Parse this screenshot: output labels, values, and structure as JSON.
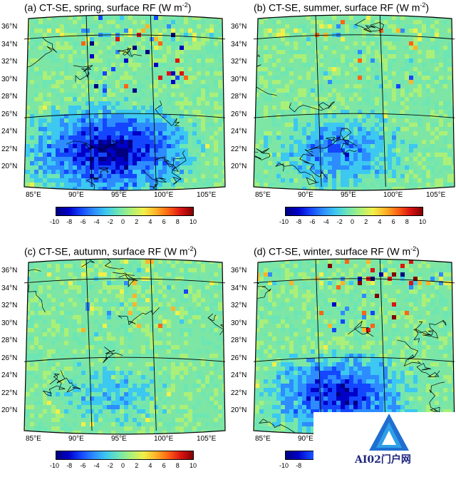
{
  "chart_data": [
    {
      "type": "heatmap",
      "title": "(a) CT-SE, spring, surface RF (W m",
      "title_sup": "-2",
      "title_end": ")",
      "y_ticks": [
        "36°N",
        "34°N",
        "32°N",
        "30°N",
        "28°N",
        "26°N",
        "24°N",
        "22°N",
        "20°N"
      ],
      "x_ticks": [
        "85°E",
        "90°E",
        "95°E",
        "100°E",
        "105°E"
      ],
      "colorbar_ticks": [
        "-10",
        "-8",
        "-6",
        "-4",
        "-2",
        "0",
        "2",
        "4",
        "6",
        "8",
        "10"
      ],
      "colorbar_range": [
        -10,
        10
      ],
      "pattern": "strong negative over south (Myanmar region, 20–26°N), scattered positive/negative dipoles over plateau"
    },
    {
      "type": "heatmap",
      "title": "(b) CT-SE, summer, surface RF (W m",
      "title_sup": "-2",
      "title_end": ")",
      "y_ticks": [
        "36°N",
        "34°N",
        "32°N",
        "30°N",
        "28°N",
        "26°N",
        "24°N",
        "22°N",
        "20°N"
      ],
      "x_ticks": [
        "85°E",
        "90°E",
        "95°E",
        "100°E",
        "105°E"
      ],
      "colorbar_ticks": [
        "-10",
        "-8",
        "-6",
        "-4",
        "-2",
        "0",
        "2",
        "4",
        "6",
        "8",
        "10"
      ],
      "colorbar_range": [
        -10,
        10
      ],
      "pattern": "moderate negative over south, weak elsewhere"
    },
    {
      "type": "heatmap",
      "title": "(c) CT-SE, autumn, surface RF (W m",
      "title_sup": "-2",
      "title_end": ")",
      "y_ticks": [
        "36°N",
        "34°N",
        "32°N",
        "30°N",
        "28°N",
        "26°N",
        "24°N",
        "22°N",
        "20°N"
      ],
      "x_ticks": [
        "85°E",
        "90°E",
        "95°E",
        "100°E",
        "105°E"
      ],
      "colorbar_ticks": [
        "-10",
        "-8",
        "-6",
        "-4",
        "-2",
        "0",
        "2",
        "4",
        "6",
        "8",
        "10"
      ],
      "colorbar_range": [
        -10,
        10
      ],
      "pattern": "weak negative over south-west, mostly near zero"
    },
    {
      "type": "heatmap",
      "title": "(d) CT-SE, winter, surface RF (W m",
      "title_sup": "-2",
      "title_end": ")",
      "y_ticks": [
        "36°N",
        "34°N",
        "32°N",
        "30°N",
        "28°N",
        "26°N",
        "24°N",
        "22°N",
        "20°N"
      ],
      "x_ticks": [
        "85°E",
        "90°E",
        "95°E",
        "100°E",
        "105°E"
      ],
      "colorbar_ticks": [
        "-10",
        "-8"
      ],
      "colorbar_range": [
        -10,
        10
      ],
      "pattern": "strong negative over south-west, dipoles along 98°E"
    }
  ],
  "watermark": {
    "text": "AI02门户网",
    "color": "#1a237e"
  },
  "colors": {
    "scale": [
      "#00007f",
      "#0000c8",
      "#1446ff",
      "#2d8cff",
      "#3cc8f0",
      "#6ee6b4",
      "#aaf078",
      "#f0f04b",
      "#ffb428",
      "#ff6414",
      "#dc1414",
      "#820000"
    ],
    "background": "#7de6a5",
    "map_line": "#000000"
  }
}
